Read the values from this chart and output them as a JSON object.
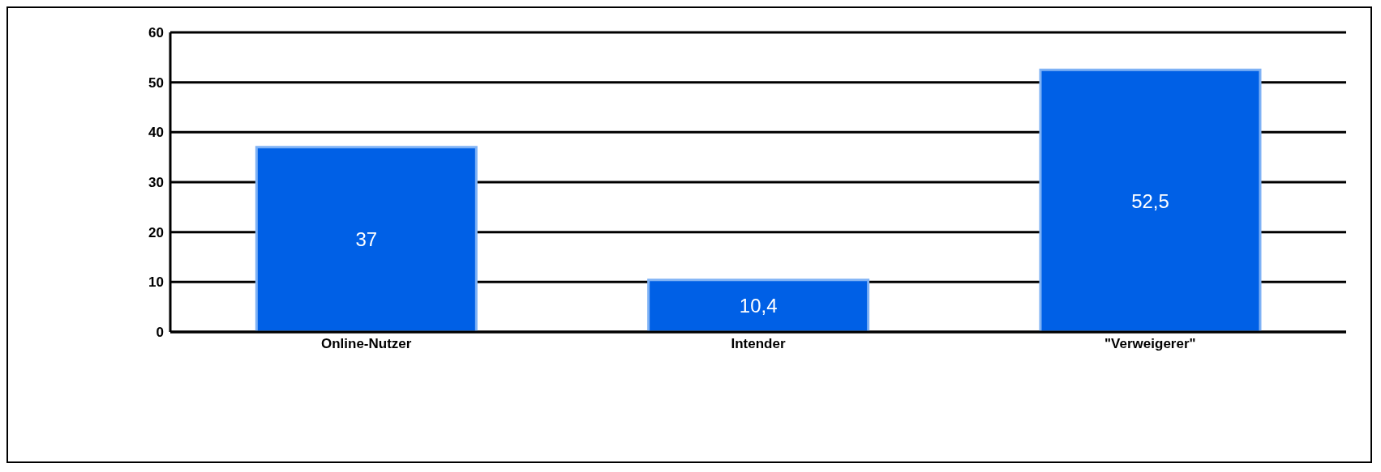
{
  "chart_data": {
    "type": "bar",
    "categories": [
      "Online-Nutzer",
      "Intender",
      "\"Verweigerer\""
    ],
    "values": [
      37,
      10.4,
      52.5
    ],
    "color": "#0060e6",
    "value_labels": [
      "37",
      "10,4",
      "52,5"
    ],
    "ylim": [
      0,
      60
    ],
    "yticks": [
      0,
      10,
      20,
      30,
      40,
      50,
      60
    ],
    "grid": "y"
  }
}
